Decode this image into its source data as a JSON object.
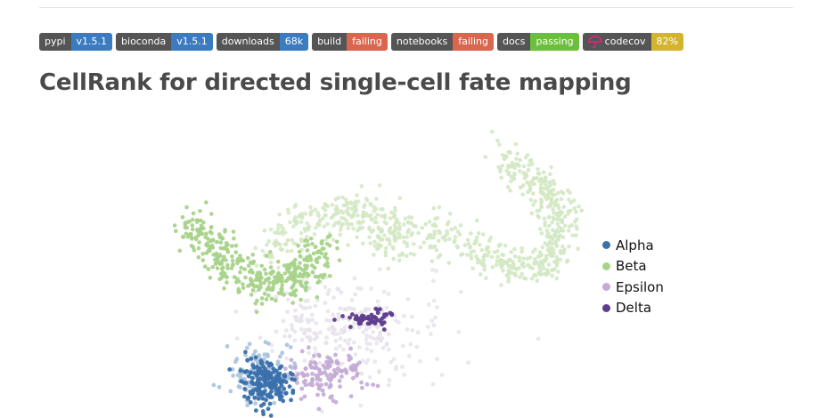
{
  "badges": [
    {
      "id": "pypi",
      "label": "pypi",
      "message": "v1.5.1",
      "color": "#3b7bbf"
    },
    {
      "id": "bioconda",
      "label": "bioconda",
      "message": "v1.5.1",
      "color": "#3b7bbf"
    },
    {
      "id": "downloads",
      "label": "downloads",
      "message": "68k",
      "color": "#3b7bbf"
    },
    {
      "id": "build",
      "label": "build",
      "message": "failing",
      "color": "#d9664f"
    },
    {
      "id": "notebooks",
      "label": "notebooks",
      "message": "failing",
      "color": "#d9664f"
    },
    {
      "id": "docs",
      "label": "docs",
      "message": "passing",
      "color": "#6cbf3c"
    },
    {
      "id": "codecov",
      "label": "codecov",
      "message": "82%",
      "color": "#d4b42f",
      "icon": "codecov-umbrella-icon"
    }
  ],
  "title": "CellRank for directed single-cell fate mapping",
  "legend": [
    {
      "label": "Alpha",
      "color": "#3a70ab"
    },
    {
      "label": "Beta",
      "color": "#a8d38a"
    },
    {
      "label": "Epsilon",
      "color": "#c3abd5"
    },
    {
      "label": "Delta",
      "color": "#5e3d8e"
    }
  ]
}
